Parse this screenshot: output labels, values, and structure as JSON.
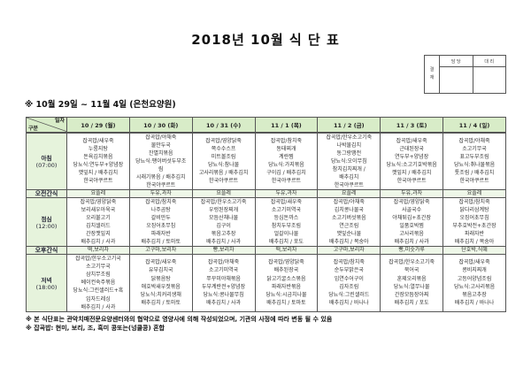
{
  "title": "2018년 10월 식 단 표",
  "approval": {
    "label": [
      "결",
      "재"
    ],
    "columns": [
      "담 당",
      "대 리"
    ]
  },
  "subtitle": "※ 10월 29일 ~ 11월 4일 (은천요양원)",
  "table": {
    "corner_top": "일자",
    "corner_bottom": "구분",
    "days": [
      "10 / 29 (월)",
      "10 / 30 (화)",
      "10 / 31 (수)",
      "11 / 1 (목)",
      "11 / 2 (금)",
      "11 / 3 (토)",
      "11 / 4 (일)"
    ],
    "breakfast": {
      "label": "아침",
      "time": "(07:00)",
      "cells": [
        [
          "잡곡밥/새우죽",
          "누룽지탕",
          "돈육김치볶음",
          "당뇨식:연두부+양념장",
          "깻잎지 / 배추김치",
          "한국야쿠르트"
        ],
        [
          "잡곡밥/야채죽",
          "물만두국",
          "잔멸치볶음",
          "당뇨식:팽이버섯두부조",
          "림",
          "시래기볶음 / 배추김치",
          "한국야쿠르트"
        ],
        [
          "잡곡밥/영양닭죽",
          "쪽수수스프",
          "미트볼조림",
          "당뇨식:참나물",
          "고사리볶음 / 배추김치",
          "한국야쿠르트"
        ],
        [
          "잡곡밥/참치죽",
          "동태찌개",
          "계란찜",
          "당뇨식:가지볶음",
          "구이김 / 배추김치",
          "한국야쿠르트"
        ],
        [
          "잡곡밥/한우소고기죽",
          "나박물김치",
          "동그랑땡전",
          "당뇨식:오이무침",
          "참치김치찌개 /",
          "배추김치",
          "한국야쿠르트"
        ],
        [
          "잡곡밥/새우죽",
          "근대된장국",
          "연두부+양념장",
          "당뇨식:소고기호박볶음",
          "깻잎지 / 배추김치",
          "한국야쿠르트"
        ],
        [
          "잡곡밥/야채죽",
          "소고기무국",
          "표고두부조림",
          "당뇨식:취나물볶음",
          "톳조림 / 배추김치",
          "한국야쿠르트"
        ]
      ]
    },
    "am_snack": {
      "label": "오전간식",
      "cells": [
        "요플레",
        "두유,과자",
        "요플레",
        "두유,과자",
        "요플레",
        "두유,과자",
        "요플레"
      ]
    },
    "lunch": {
      "label": "점심",
      "time": "(12:00)",
      "cells": [
        [
          "잡곡밥/영양닭죽",
          "보리새우아욱국",
          "오리불고기",
          "김치샐러드",
          "간장깻잎지",
          "배추김치 / 사과"
        ],
        [
          "잡곡밥/참치죽",
          "나주곰탕",
          "갈비만두",
          "오징어초무침",
          "파래자반",
          "배추김치 / 토마토"
        ],
        [
          "잡곡밥/한우소고기죽",
          "우렁된장찌개",
          "모듬산채나물",
          "김구이",
          "볶음고추장",
          "배추김치 / 사과"
        ],
        [
          "잡곡밥/새우죽",
          "소고기미역국",
          "등심돈까스",
          "참치두부조림",
          "얼갈이나물",
          "배추김치 / 포도"
        ],
        [
          "잡곡밥/야채죽",
          "김치콩나물국",
          "소고기버섯볶음",
          "연근조림",
          "깻잎순나물",
          "배추김치 / 복숭아"
        ],
        [
          "잡곡밥/영양닭죽",
          "사골국수",
          "야채튀김+초간장",
          "일품호박찜",
          "고사리볶음",
          "배추김치 / 사과"
        ],
        [
          "잡곡밥/참치죽",
          "닭다리삼계탕",
          "오징어초무침",
          "부추호박전+초간장",
          "파래자반",
          "배추김치 / 복숭아"
        ]
      ]
    },
    "pm_snack": {
      "label": "오후간식",
      "cells": [
        "떡,보리차",
        "고구마,보리차",
        "빵,보리차",
        "떡,보리차",
        "고구마,보리차",
        "빵,미숫가루",
        "단호박,식혜"
      ]
    },
    "dinner": {
      "label": "저녁",
      "time": "(18:00)",
      "cells": [
        [
          "잡곡밥/한우소고기국",
          "소고기무국",
          "삼치무조림",
          "베이컨숙주볶음",
          "당뇨식:그린샐러드+흑",
          "임자드레싱",
          "배추김치 / 사과"
        ],
        [
          "잡곡밥/새우죽",
          "유부김치국",
          "닭볶음탕",
          "애호박새우젓볶음",
          "당뇨식:치커리생채",
          "배추김치 / 토마토"
        ],
        [
          "잡곡밥/야채죽",
          "소고기미역국",
          "쭈꾸미야채볶음",
          "두부계란전+양념장",
          "당뇨식:콩나물무침",
          "배추김치 / 사과"
        ],
        [
          "잡곡밥/영양닭죽",
          "배추된장국",
          "닭고기굴소스볶음",
          "파래자반볶음",
          "당뇨식:시금치나물",
          "배추김치 / 토마토"
        ],
        [
          "잡곡밥/참치죽",
          "순두부맑은국",
          "임연수어구이",
          "김자조림",
          "당뇨식:그린샐러드",
          "배추김치 / 바나나"
        ],
        [
          "잡곡밥/한우소고기죽",
          "북어국",
          "훈제오리볶음",
          "당뇨식:열무나물",
          "간장모듬장아찌",
          "배추김치 / 포도"
        ],
        [
          "잡곡밥/새우죽",
          "콩비지찌개",
          "고등어양념조림",
          "당뇨식:고사리볶음",
          "볶음고추장",
          "배추김치 / 바나나"
        ]
      ]
    }
  },
  "notes": [
    "※ 본 식단표는 관악치매전문요양센터와의 협약으로 영양사에 의해 작성되었으며, 기관의 사정에 따라 변동 될 수 있음",
    "※ 잡곡밥: 현미, 보리, 조, 흑미 콩또는(넝쿨콩) 혼합"
  ],
  "colors": {
    "header_bg": "#d8ecc8",
    "label_bg": "#e6f3dc",
    "snack_bg": "#eef7e8",
    "border": "#555555"
  }
}
